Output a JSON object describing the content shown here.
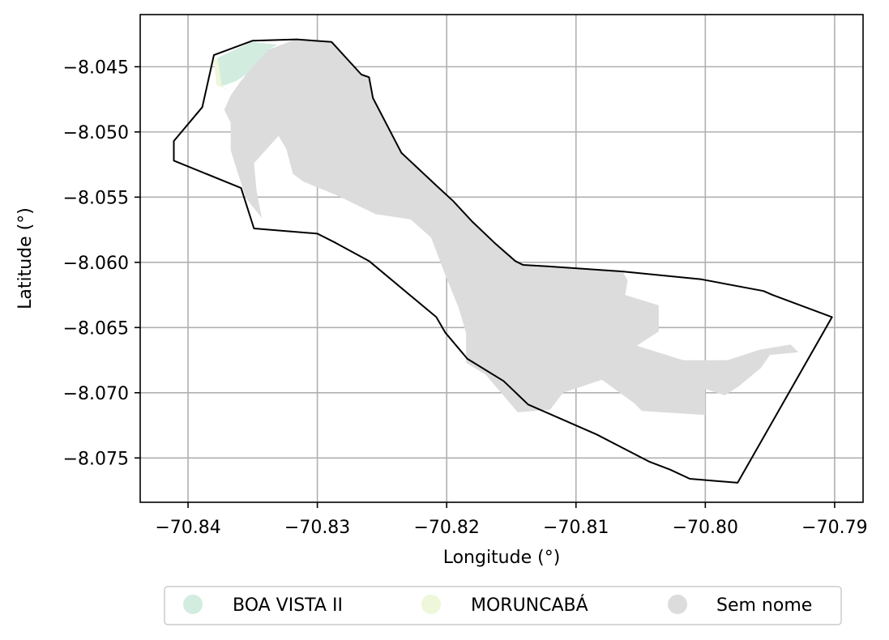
{
  "chart_data": {
    "type": "map",
    "xlabel": "Longitude (°)",
    "ylabel": "Latitude (°)",
    "xlim": [
      -70.8437,
      -70.7878
    ],
    "ylim": [
      -8.0784,
      -8.041
    ],
    "x_ticks": [
      {
        "value": -70.84,
        "label": "−70.84"
      },
      {
        "value": -70.83,
        "label": "−70.83"
      },
      {
        "value": -70.82,
        "label": "−70.82"
      },
      {
        "value": -70.81,
        "label": "−70.81"
      },
      {
        "value": -70.8,
        "label": "−70.80"
      },
      {
        "value": -70.79,
        "label": "−70.79"
      }
    ],
    "y_ticks": [
      {
        "value": -8.045,
        "label": "−8.045"
      },
      {
        "value": -8.05,
        "label": "−8.050"
      },
      {
        "value": -8.055,
        "label": "−8.055"
      },
      {
        "value": -8.06,
        "label": "−8.060"
      },
      {
        "value": -8.065,
        "label": "−8.065"
      },
      {
        "value": -8.07,
        "label": "−8.070"
      },
      {
        "value": -8.075,
        "label": "−8.075"
      }
    ],
    "grid": true,
    "legend_position": "bottom-center",
    "boundary": {
      "stroke": "#000000",
      "coordinates": [
        [
          -70.838,
          -8.0441
        ],
        [
          -70.835,
          -8.043
        ],
        [
          -70.8316,
          -8.0429
        ],
        [
          -70.8289,
          -8.0431
        ],
        [
          -70.8266,
          -8.0456
        ],
        [
          -70.826,
          -8.0458
        ],
        [
          -70.8257,
          -8.0474
        ],
        [
          -70.8235,
          -8.0516
        ],
        [
          -70.8207,
          -8.0542
        ],
        [
          -70.8195,
          -8.0553
        ],
        [
          -70.818,
          -8.0569
        ],
        [
          -70.8163,
          -8.0585
        ],
        [
          -70.8147,
          -8.0599
        ],
        [
          -70.8141,
          -8.0602
        ],
        [
          -70.8122,
          -8.0603
        ],
        [
          -70.8064,
          -8.0607
        ],
        [
          -70.8003,
          -8.0613
        ],
        [
          -70.7955,
          -8.0622
        ],
        [
          -70.7948,
          -8.0625
        ],
        [
          -70.7902,
          -8.0642
        ],
        [
          -70.7975,
          -8.0769
        ],
        [
          -70.8012,
          -8.0766
        ],
        [
          -70.8027,
          -8.0759
        ],
        [
          -70.8043,
          -8.0753
        ],
        [
          -70.8084,
          -8.0732
        ],
        [
          -70.8137,
          -8.0709
        ],
        [
          -70.8156,
          -8.0691
        ],
        [
          -70.8184,
          -8.0674
        ],
        [
          -70.8201,
          -8.0654
        ],
        [
          -70.8208,
          -8.0642
        ],
        [
          -70.826,
          -8.0599
        ],
        [
          -70.8286,
          -8.0585
        ],
        [
          -70.83,
          -8.0578
        ],
        [
          -70.8349,
          -8.0574
        ],
        [
          -70.8359,
          -8.0543
        ],
        [
          -70.8411,
          -8.0522
        ],
        [
          -70.8411,
          -8.0507
        ],
        [
          -70.8389,
          -8.0481
        ]
      ]
    },
    "series": [
      {
        "name": "BOA VISTA II",
        "color": "#d2ece0",
        "coordinates": [
          [
            -70.8377,
            -8.0443
          ],
          [
            -70.8351,
            -8.0431
          ],
          [
            -70.8331,
            -8.0433
          ],
          [
            -70.8338,
            -8.0437
          ],
          [
            -70.8352,
            -8.0454
          ],
          [
            -70.8363,
            -8.0461
          ],
          [
            -70.8374,
            -8.0465
          ]
        ]
      },
      {
        "name": "MORUNCABÁ",
        "color": "#eef7d9",
        "coordinates": [
          [
            -70.838,
            -8.0445
          ],
          [
            -70.8377,
            -8.0443
          ],
          [
            -70.8374,
            -8.0465
          ],
          [
            -70.8367,
            -8.0469
          ],
          [
            -70.8378,
            -8.0464
          ]
        ]
      },
      {
        "name": "Sem nome",
        "color": "#dcdcdc",
        "coordinates": [
          [
            -70.8351,
            -8.0451
          ],
          [
            -70.8338,
            -8.0437
          ],
          [
            -70.8317,
            -8.0429
          ],
          [
            -70.8289,
            -8.0431
          ],
          [
            -70.8266,
            -8.0456
          ],
          [
            -70.826,
            -8.0458
          ],
          [
            -70.8257,
            -8.0474
          ],
          [
            -70.8235,
            -8.0516
          ],
          [
            -70.8207,
            -8.0542
          ],
          [
            -70.818,
            -8.0569
          ],
          [
            -70.8147,
            -8.0599
          ],
          [
            -70.8141,
            -8.0602
          ],
          [
            -70.8122,
            -8.0603
          ],
          [
            -70.8064,
            -8.0607
          ],
          [
            -70.806,
            -8.0614
          ],
          [
            -70.8062,
            -8.0625
          ],
          [
            -70.8036,
            -8.0633
          ],
          [
            -70.8036,
            -8.0653
          ],
          [
            -70.8053,
            -8.0664
          ],
          [
            -70.8017,
            -8.0675
          ],
          [
            -70.7983,
            -8.0675
          ],
          [
            -70.7958,
            -8.0667
          ],
          [
            -70.7934,
            -8.0663
          ],
          [
            -70.7928,
            -8.0669
          ],
          [
            -70.795,
            -8.0671
          ],
          [
            -70.7957,
            -8.0681
          ],
          [
            -70.7974,
            -8.0695
          ],
          [
            -70.7985,
            -8.0702
          ],
          [
            -70.8,
            -8.0697
          ],
          [
            -70.8,
            -8.0717
          ],
          [
            -70.8049,
            -8.0714
          ],
          [
            -70.8055,
            -8.0708
          ],
          [
            -70.808,
            -8.069
          ],
          [
            -70.811,
            -8.07
          ],
          [
            -70.812,
            -8.0713
          ],
          [
            -70.8145,
            -8.0715
          ],
          [
            -70.817,
            -8.0686
          ],
          [
            -70.8185,
            -8.0677
          ],
          [
            -70.8185,
            -8.0654
          ],
          [
            -70.8191,
            -8.0634
          ],
          [
            -70.8201,
            -8.061
          ],
          [
            -70.8212,
            -8.0581
          ],
          [
            -70.8228,
            -8.0567
          ],
          [
            -70.8255,
            -8.0563
          ],
          [
            -70.8284,
            -8.0549
          ],
          [
            -70.8311,
            -8.0538
          ],
          [
            -70.8319,
            -8.0532
          ],
          [
            -70.8324,
            -8.0513
          ],
          [
            -70.833,
            -8.0503
          ],
          [
            -70.8349,
            -8.0524
          ],
          [
            -70.8347,
            -8.0545
          ],
          [
            -70.8343,
            -8.0566
          ],
          [
            -70.8355,
            -8.0551
          ],
          [
            -70.8362,
            -8.053
          ],
          [
            -70.8367,
            -8.0514
          ],
          [
            -70.8367,
            -8.0493
          ],
          [
            -70.8372,
            -8.0483
          ],
          [
            -70.8367,
            -8.0472
          ],
          [
            -70.836,
            -8.0462
          ]
        ]
      }
    ]
  },
  "legend": {
    "items": [
      {
        "label": "BOA VISTA II",
        "color": "#d2ece0"
      },
      {
        "label": "MORUNCABÁ",
        "color": "#eef7d9"
      },
      {
        "label": "Sem nome",
        "color": "#dcdcdc"
      }
    ]
  }
}
